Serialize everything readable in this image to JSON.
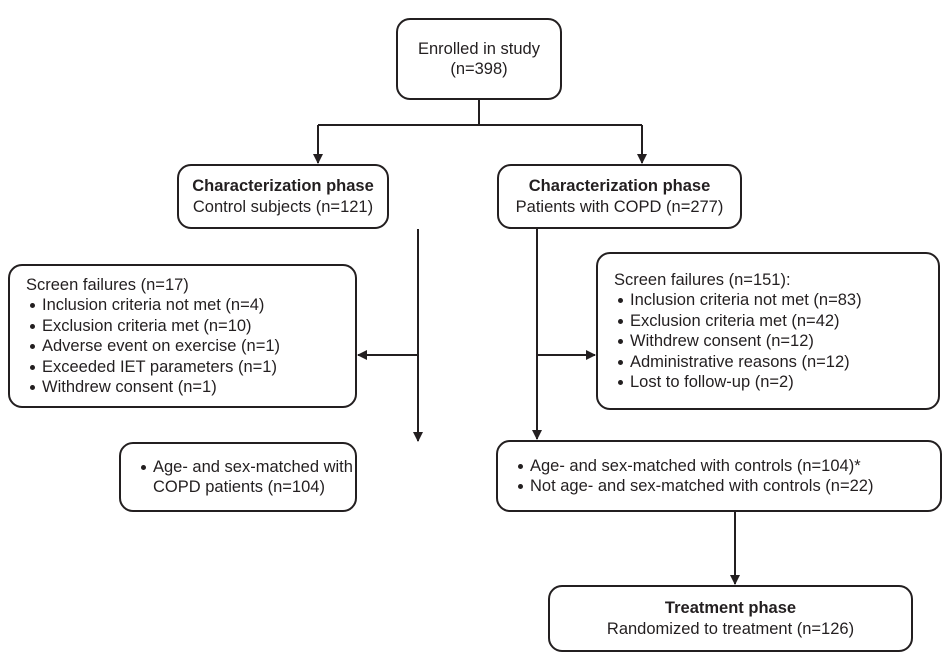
{
  "nodes": [
    {
      "lines": [
        "Enrolled in study",
        "(n=398)"
      ]
    },
    {
      "title": "Characterization phase",
      "lines": [
        "Control subjects (n=121)"
      ]
    },
    {
      "title": "Characterization phase",
      "lines": [
        "Patients with COPD (n=277)"
      ]
    },
    {
      "lines": [
        "Screen failures (n=17)"
      ],
      "bullets": [
        [
          "Inclusion criteria not met (n=4)"
        ],
        [
          "Exclusion criteria met (n=10)"
        ],
        [
          "Adverse event on exercise (n=1)"
        ],
        [
          "Exceeded IET parameters (n=1)"
        ],
        [
          "Withdrew consent (n=1)"
        ]
      ]
    },
    {
      "lines": [
        "Screen failures (n=151):"
      ],
      "bullets": [
        [
          "Inclusion criteria not met (n=83)"
        ],
        [
          "Exclusion criteria met (n=42)"
        ],
        [
          "Withdrew consent (n=12)"
        ],
        [
          "Administrative reasons (n=12)"
        ],
        [
          "Lost to follow-up (n=2)"
        ]
      ]
    },
    {
      "bullets": [
        [
          "Age- and sex-matched with",
          "COPD patients (n=104)"
        ]
      ]
    },
    {
      "bullets": [
        [
          "Age- and sex-matched with controls (n=104)*"
        ],
        [
          "Not age- and sex-matched with controls (n=22)"
        ]
      ]
    },
    {
      "title": "Treatment phase",
      "lines": [
        "Randomized to treatment (n=126)"
      ]
    }
  ]
}
